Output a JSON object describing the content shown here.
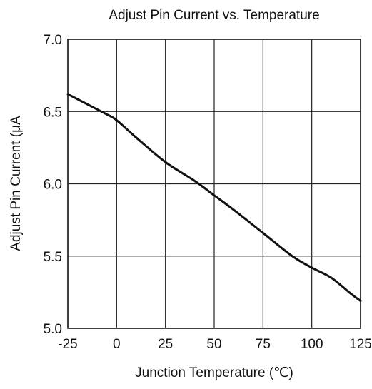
{
  "chart_data": {
    "type": "line",
    "title": "Adjust Pin Current vs. Temperature",
    "xlabel": "Junction Temperature (℃)",
    "ylabel": "Adjust Pin Current (μA",
    "xlim": [
      -25,
      125
    ],
    "ylim": [
      5.0,
      7.0
    ],
    "x_ticks": [
      -25,
      0,
      25,
      50,
      75,
      100,
      125
    ],
    "x_tick_labels": [
      "-25",
      "0",
      "25",
      "50",
      "75",
      "100",
      "125"
    ],
    "y_ticks": [
      5.0,
      5.5,
      6.0,
      6.5,
      7.0
    ],
    "y_tick_labels": [
      "5.0",
      "5.5",
      "6.0",
      "6.5",
      "7.0"
    ],
    "grid": true,
    "series": [
      {
        "x": [
          -25,
          -15,
          -5,
          0,
          10,
          25,
          40,
          50,
          60,
          75,
          90,
          100,
          110,
          120,
          125
        ],
        "y": [
          6.62,
          6.55,
          6.48,
          6.44,
          6.32,
          6.15,
          6.02,
          5.92,
          5.82,
          5.66,
          5.5,
          5.42,
          5.35,
          5.24,
          5.19
        ]
      }
    ],
    "colors": {
      "line": "#111111",
      "grid": "#222222",
      "frame": "#111111"
    }
  }
}
